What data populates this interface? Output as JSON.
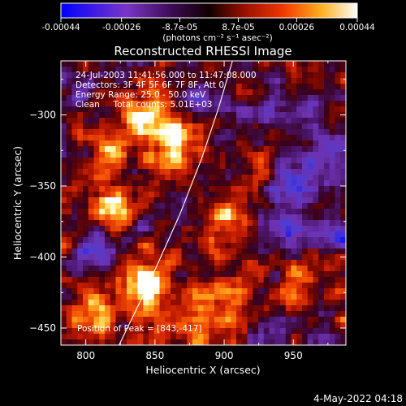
{
  "colorbar": {
    "tick_labels": [
      "-0.00044",
      "-0.00026",
      "-8.7e-05",
      "8.7e-05",
      "0.00026",
      "0.00044"
    ],
    "tick_values": [
      -0.00044,
      -0.00026,
      -8.7e-05,
      8.7e-05,
      0.00026,
      0.00044
    ],
    "range": [
      -0.00044,
      0.00044
    ],
    "units_label": "(photons cm⁻² s⁻¹ asec⁻²)"
  },
  "chart_data": {
    "type": "heatmap",
    "title": "Reconstructed RHESSI Image",
    "xlabel": "Heliocentric X (arcsec)",
    "ylabel": "Heliocentric Y (arcsec)",
    "xlim": [
      782,
      988
    ],
    "ylim": [
      -462,
      -262
    ],
    "x_ticks": [
      800,
      850,
      900,
      950
    ],
    "y_ticks": [
      -300,
      -350,
      -400,
      -450
    ],
    "x_tick_labels": [
      "800",
      "850",
      "900",
      "950"
    ],
    "y_tick_labels": [
      "−300",
      "−350",
      "−400",
      "−450"
    ],
    "colormap": [
      "#0000ff",
      "#6a3db0",
      "#3a0a1a",
      "#8a0a00",
      "#e83000",
      "#ff9a10",
      "#ffff80",
      "#ffffff"
    ],
    "annotations": [
      "24-Jul-2003 11:41:56.000 to 11:47:08.000",
      "Detectors: 3F 4F 5F 6F 7F 8F, Att 0",
      "Energy Range: 25.0 - 50.0 keV",
      "Clean     Total counts: 5.01E+03"
    ],
    "peak_label": "Position of Peak = [843,-417]",
    "peak_position": [
      843,
      -417
    ],
    "limb_curve": [
      [
        824,
        -462
      ],
      [
        845,
        -420
      ],
      [
        868,
        -370
      ],
      [
        884,
        -330
      ],
      [
        896,
        -295
      ],
      [
        906,
        -262
      ]
    ],
    "pixel_grid": {
      "cols": 52,
      "rows": 50
    },
    "hot_spots": [
      {
        "x": 843,
        "y": -417,
        "intensity": 1.0
      },
      {
        "x": 867,
        "y": -320,
        "intensity": 0.78
      },
      {
        "x": 845,
        "y": -300,
        "intensity": 0.72
      },
      {
        "x": 818,
        "y": -363,
        "intensity": 0.7
      },
      {
        "x": 805,
        "y": -437,
        "intensity": 0.68
      },
      {
        "x": 815,
        "y": -325,
        "intensity": 0.6
      },
      {
        "x": 880,
        "y": -445,
        "intensity": 0.62
      },
      {
        "x": 902,
        "y": -372,
        "intensity": 0.55
      },
      {
        "x": 955,
        "y": -418,
        "intensity": 0.45
      },
      {
        "x": 928,
        "y": -322,
        "intensity": 0.4
      },
      {
        "x": 905,
        "y": -427,
        "intensity": 0.5
      }
    ],
    "cold_spots": [
      {
        "x": 952,
        "y": -343,
        "intensity": 0.9
      },
      {
        "x": 945,
        "y": -378,
        "intensity": 0.7
      },
      {
        "x": 975,
        "y": -382,
        "intensity": 0.6
      },
      {
        "x": 950,
        "y": -300,
        "intensity": 0.55
      },
      {
        "x": 880,
        "y": -290,
        "intensity": 0.5
      },
      {
        "x": 920,
        "y": -308,
        "intensity": 0.5
      },
      {
        "x": 808,
        "y": -395,
        "intensity": 0.5
      },
      {
        "x": 935,
        "y": -455,
        "intensity": 0.55
      },
      {
        "x": 980,
        "y": -330,
        "intensity": 0.55
      }
    ]
  },
  "footer": {
    "date_stamp": "4-May-2022 04:18"
  }
}
